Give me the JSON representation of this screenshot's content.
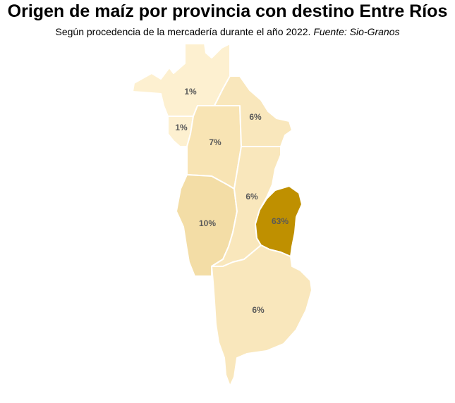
{
  "title": "Origen de maíz por provincia con destino Entre Ríos",
  "subtitle": "Según procedencia de la mercadería durante el año 2022.",
  "source": "Fuente: Sio-Granos",
  "regions": [
    {
      "id": "jujuy-salta",
      "label": "1%",
      "value": 1,
      "color": "#fdf0d0"
    },
    {
      "id": "tucuman",
      "label": "1%",
      "value": 1,
      "color": "#fdf0d0"
    },
    {
      "id": "santiago-del-estero",
      "label": "7%",
      "value": 7,
      "color": "#f8e4b4"
    },
    {
      "id": "chaco",
      "label": "6%",
      "value": 6,
      "color": "#f9e7bc"
    },
    {
      "id": "cordoba",
      "label": "10%",
      "value": 10,
      "color": "#f3dda6"
    },
    {
      "id": "santa-fe",
      "label": "6%",
      "value": 6,
      "color": "#f9e7bc"
    },
    {
      "id": "entre-rios",
      "label": "63%",
      "value": 63,
      "color": "#bf9000"
    },
    {
      "id": "buenos-aires",
      "label": "6%",
      "value": 6,
      "color": "#f9e7bc"
    }
  ]
}
